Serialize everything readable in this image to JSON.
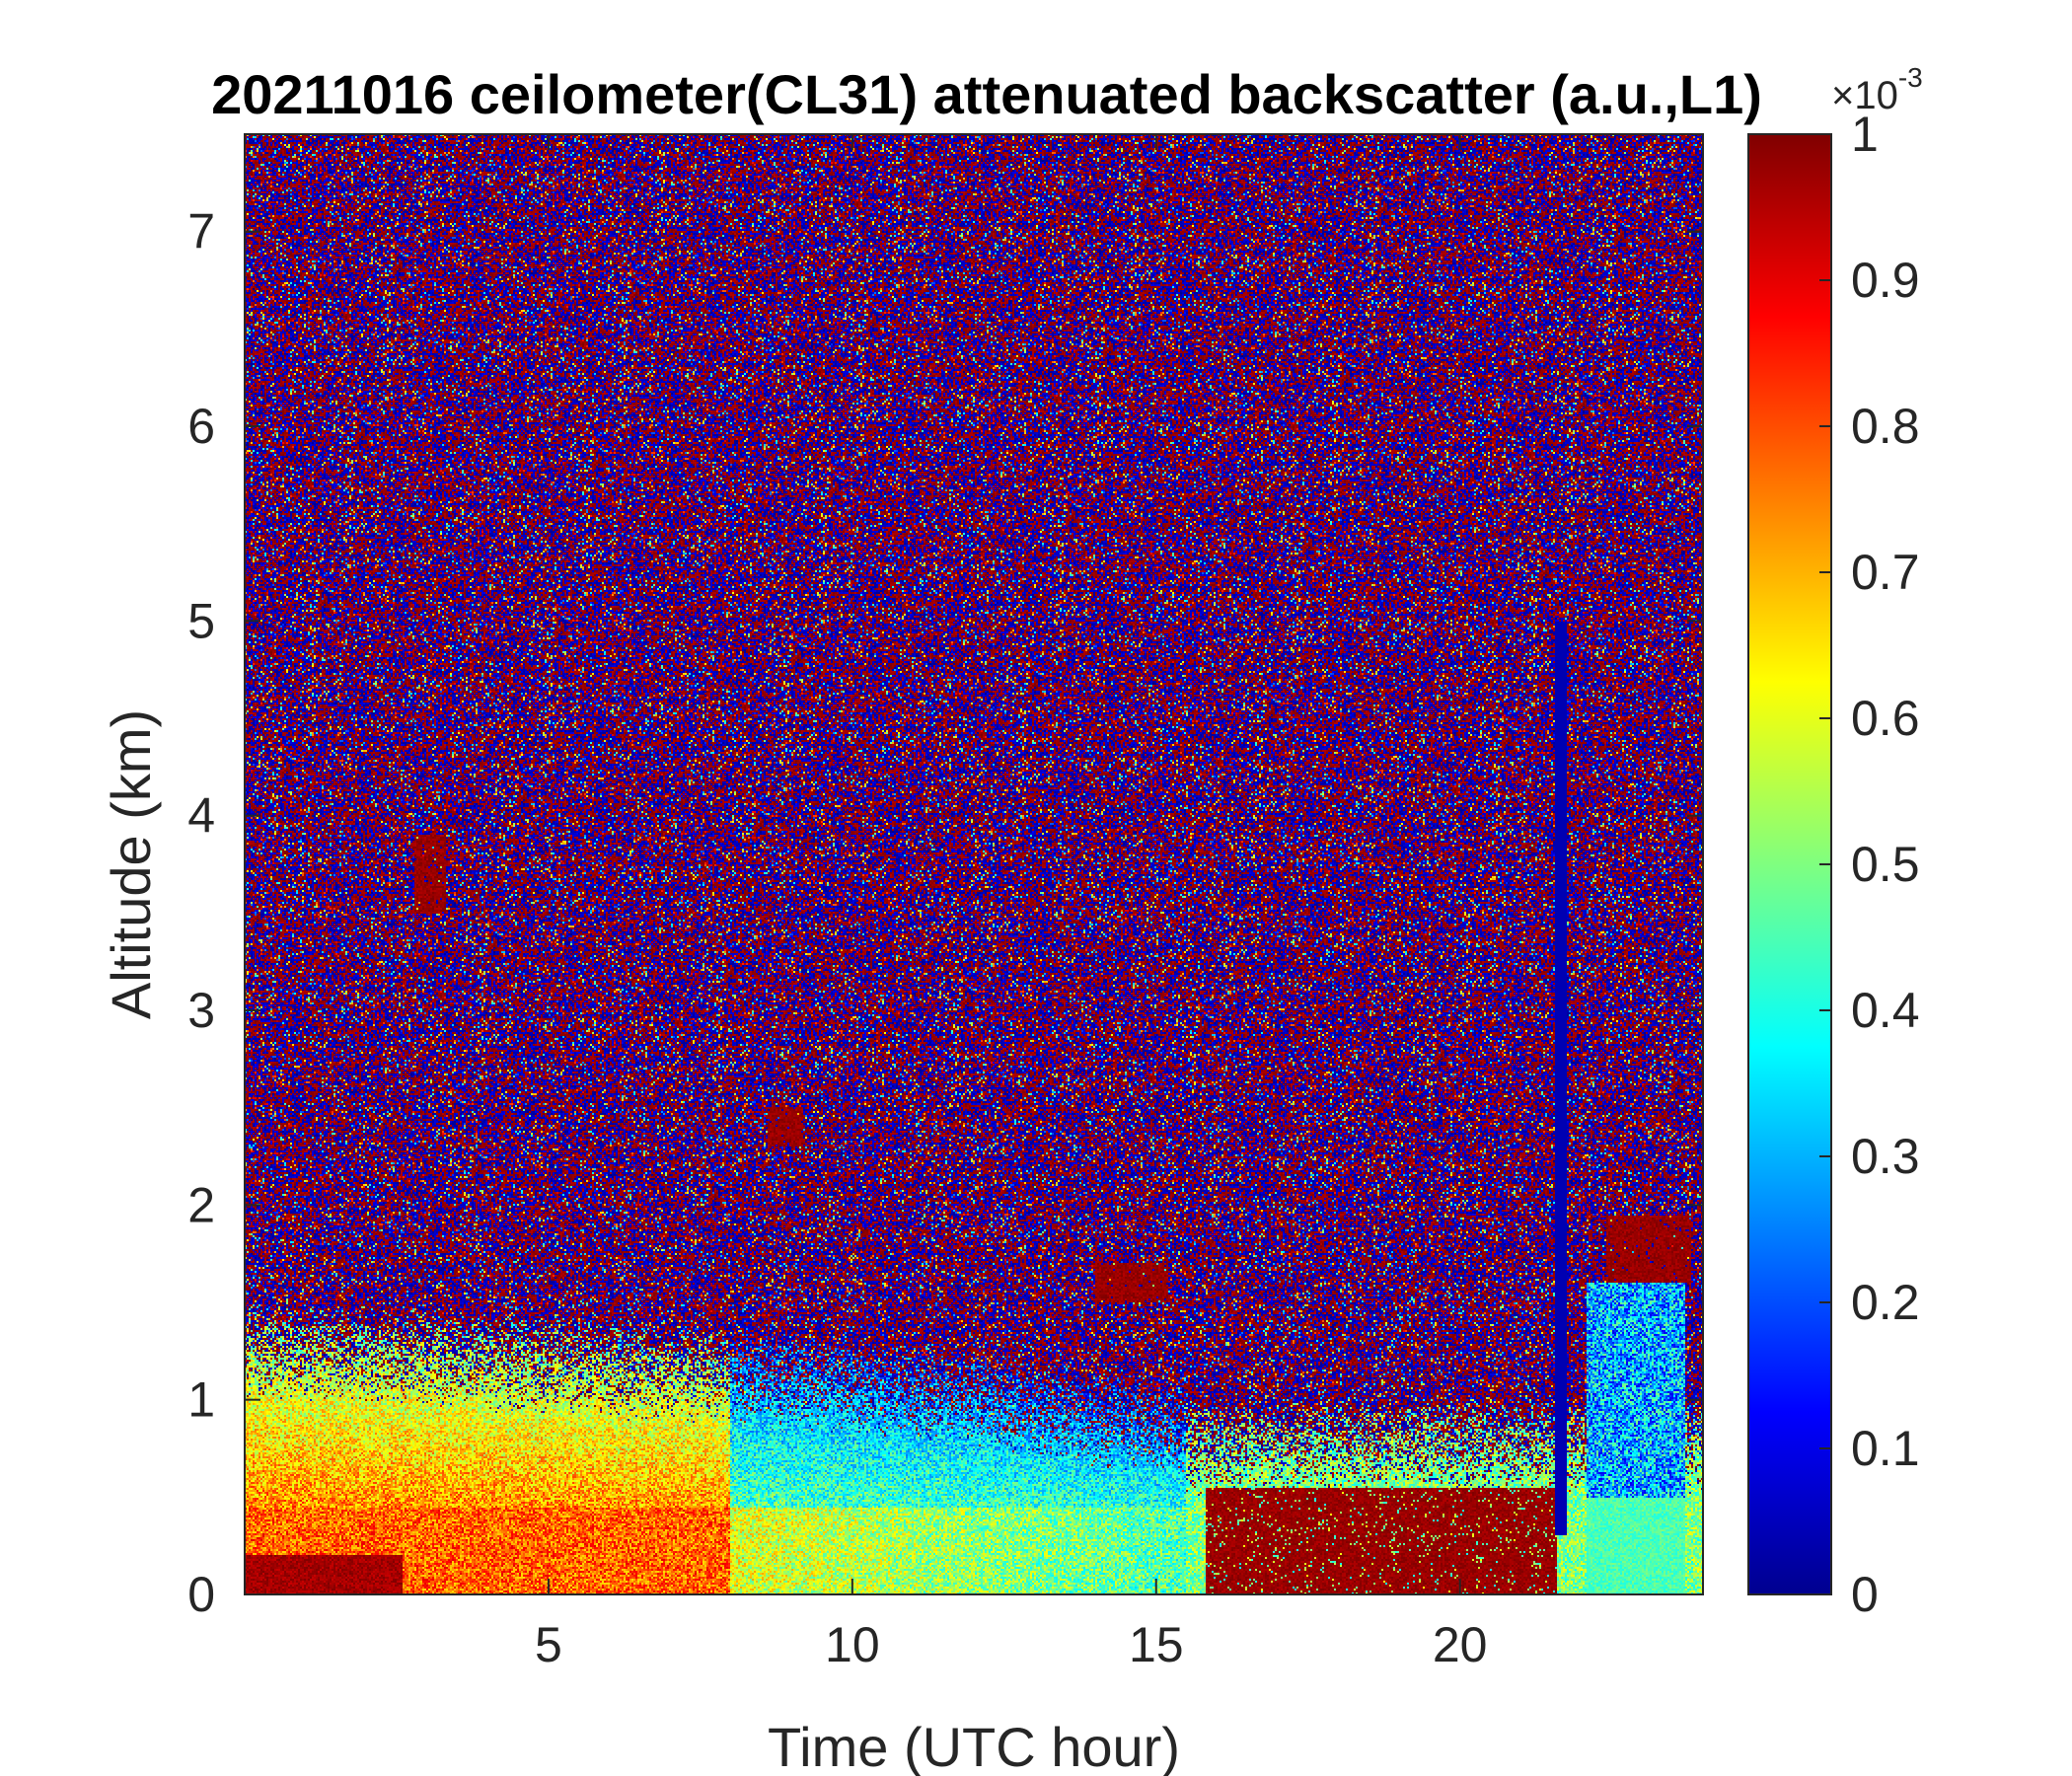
{
  "chart_data": {
    "type": "heatmap",
    "title": "20211016 ceilometer(CL31) attenuated backscatter (a.u.,L1)",
    "xlabel": "Time (UTC hour)",
    "ylabel": "Altitude (km)",
    "xlim": [
      0,
      24
    ],
    "ylim": [
      0,
      7.5
    ],
    "xticks": [
      5,
      10,
      15,
      20
    ],
    "yticks": [
      0,
      1,
      2,
      3,
      4,
      5,
      6,
      7
    ],
    "colorbar": {
      "range": [
        0,
        1
      ],
      "multiplier": "×10",
      "multiplier_exponent": "-3",
      "ticks": [
        0,
        0.1,
        0.2,
        0.3,
        0.4,
        0.5,
        0.6,
        0.7,
        0.8,
        0.9,
        1
      ],
      "tick_labels": [
        "0",
        "0.1",
        "0.2",
        "0.3",
        "0.4",
        "0.5",
        "0.6",
        "0.7",
        "0.8",
        "0.9",
        "1"
      ],
      "colormap": "jet"
    },
    "features": {
      "surface_layer_high": [
        [
          0,
          2.5,
          0.0,
          0.2
        ]
      ],
      "boundary_layer_top_km": [
        [
          0,
          1.0
        ],
        [
          3,
          0.95
        ],
        [
          6,
          0.9
        ],
        [
          9,
          0.85
        ],
        [
          12,
          0.75
        ],
        [
          15,
          0.6
        ]
      ],
      "clouds": [
        {
          "x": [
            15.8,
            21.6
          ],
          "y": [
            0,
            0.55
          ],
          "value": 1
        },
        {
          "x": [
            22.4,
            23.8
          ],
          "y": [
            1.6,
            1.95
          ],
          "value": 1
        },
        {
          "x": [
            2.8,
            3.3
          ],
          "y": [
            3.5,
            3.9
          ],
          "value": 1
        },
        {
          "x": [
            8.6,
            9.2
          ],
          "y": [
            2.3,
            2.5
          ],
          "value": 1
        },
        {
          "x": [
            14.0,
            15.2
          ],
          "y": [
            1.5,
            1.7
          ],
          "value": 1
        }
      ]
    }
  }
}
